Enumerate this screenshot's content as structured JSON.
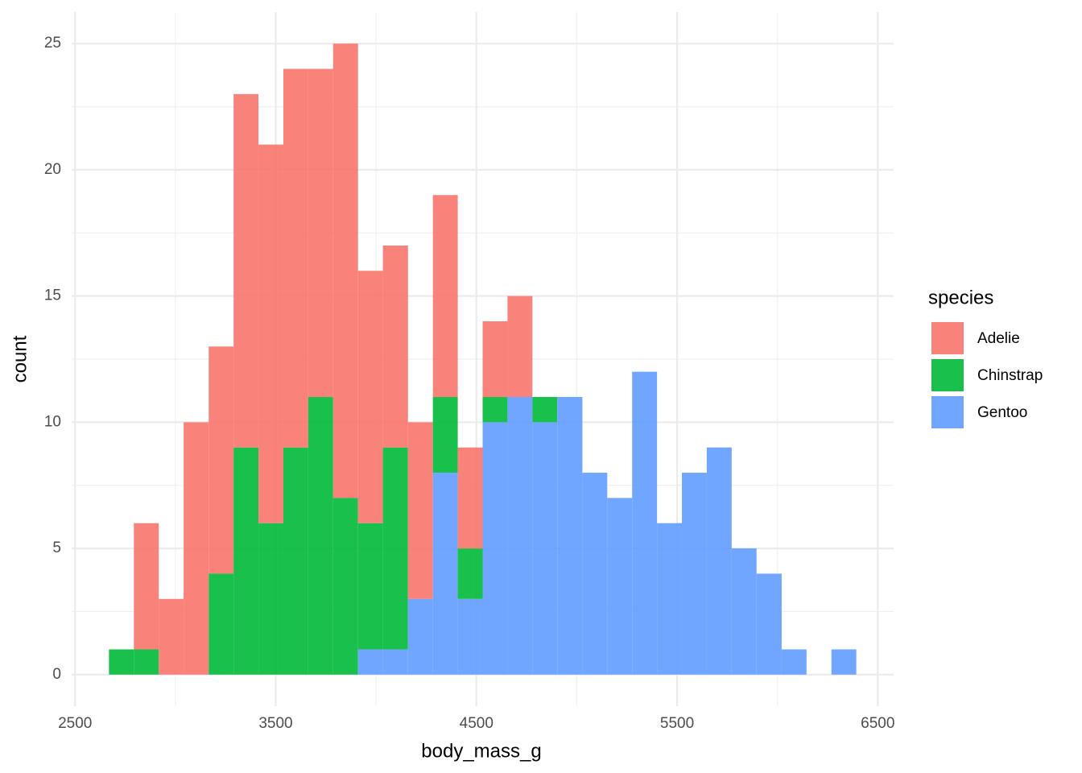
{
  "chart_data": {
    "type": "histogram",
    "x_label": "body_mass_g",
    "y_label": "count",
    "legend_title": "species",
    "legend_position": "right",
    "grid": true,
    "alpha": 0.9,
    "bins": [
      2669,
      2793,
      2917,
      3041,
      3166,
      3290,
      3414,
      3538,
      3662,
      3786,
      3910,
      4034,
      4159,
      4283,
      4407,
      4531,
      4655,
      4779,
      4903,
      5028,
      5152,
      5276,
      5400,
      5524,
      5648,
      5772,
      5896,
      6021,
      6145,
      6269,
      6393
    ],
    "series": [
      {
        "name": "Adelie",
        "color": "#F8766D",
        "values": [
          0,
          5,
          3,
          10,
          9,
          14,
          15,
          15,
          13,
          18,
          10,
          8,
          7,
          8,
          4,
          3,
          4,
          0,
          0,
          0,
          0,
          0,
          0,
          0,
          0,
          0,
          0,
          0,
          0,
          0
        ]
      },
      {
        "name": "Chinstrap",
        "color": "#00BA38",
        "values": [
          1,
          1,
          0,
          0,
          4,
          9,
          6,
          9,
          11,
          7,
          5,
          8,
          0,
          3,
          2,
          1,
          0,
          1,
          0,
          0,
          0,
          0,
          0,
          0,
          0,
          0,
          0,
          0,
          0,
          0
        ]
      },
      {
        "name": "Gentoo",
        "color": "#619CFF",
        "values": [
          0,
          0,
          0,
          0,
          0,
          0,
          0,
          0,
          0,
          0,
          1,
          1,
          3,
          8,
          3,
          10,
          11,
          10,
          11,
          8,
          7,
          12,
          6,
          8,
          9,
          5,
          4,
          1,
          0,
          1
        ]
      }
    ],
    "xlim": [
      2483,
      6579
    ],
    "ylim": [
      -1.25,
      26.25
    ],
    "xticks": [
      2500,
      3500,
      4500,
      5500,
      6500
    ],
    "yticks": [
      0,
      5,
      10,
      15,
      20,
      25
    ],
    "x_minor_ticks": [
      3000,
      4000,
      5000,
      6000
    ],
    "y_minor_ticks": [
      2.5,
      7.5,
      12.5,
      17.5,
      22.5
    ]
  }
}
